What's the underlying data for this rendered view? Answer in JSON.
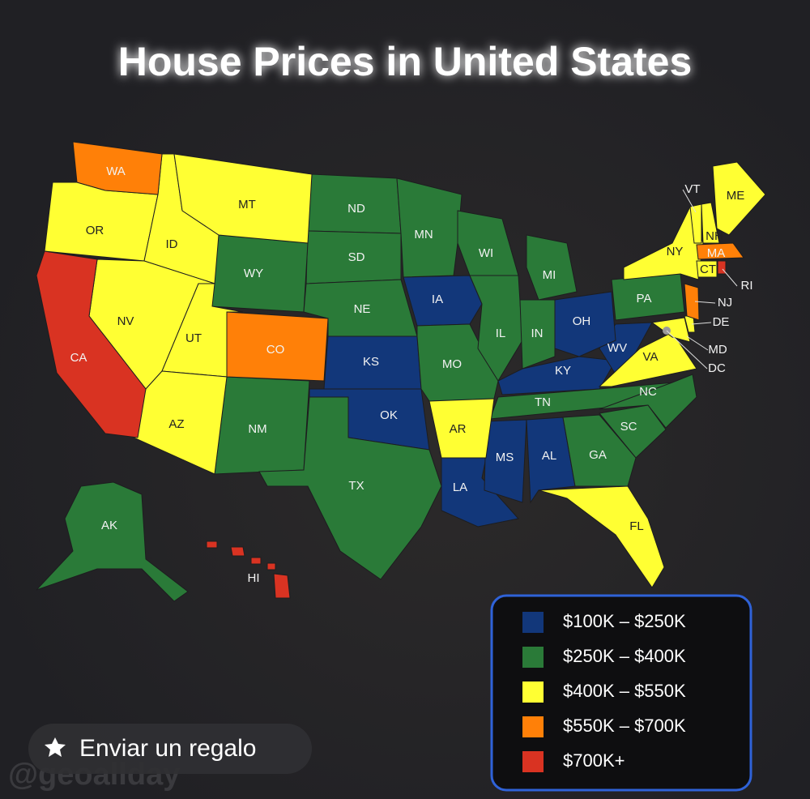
{
  "title": "House Prices in United States",
  "legend": [
    {
      "label": "$100K – $250K",
      "color": "#12377a",
      "states": [
        "IA",
        "KS",
        "OK",
        "LA",
        "MS",
        "AL",
        "KY",
        "WV",
        "OH"
      ]
    },
    {
      "label": "$250K – $400K",
      "color": "#2a7a38",
      "states": [
        "ND",
        "SD",
        "MN",
        "WI",
        "MI",
        "WY",
        "NE",
        "MO",
        "IL",
        "IN",
        "NM",
        "TX",
        "TN",
        "NC",
        "SC",
        "GA",
        "PA",
        "AK"
      ]
    },
    {
      "label": "$400K – $550K",
      "color": "#ffff33",
      "states": [
        "OR",
        "ID",
        "MT",
        "NV",
        "UT",
        "AZ",
        "AR",
        "FL",
        "VA",
        "NY",
        "VT",
        "NH",
        "ME",
        "CT",
        "DE",
        "MD",
        "DC"
      ]
    },
    {
      "label": "$550K – $700K",
      "color": "#ff8008",
      "states": [
        "WA",
        "CO",
        "MA",
        "NJ"
      ]
    },
    {
      "label": "$700K+",
      "color": "#d93322",
      "states": [
        "CA",
        "HI",
        "RI"
      ]
    }
  ],
  "button": "Enviar un regalo",
  "watermark": "@geoallday"
}
